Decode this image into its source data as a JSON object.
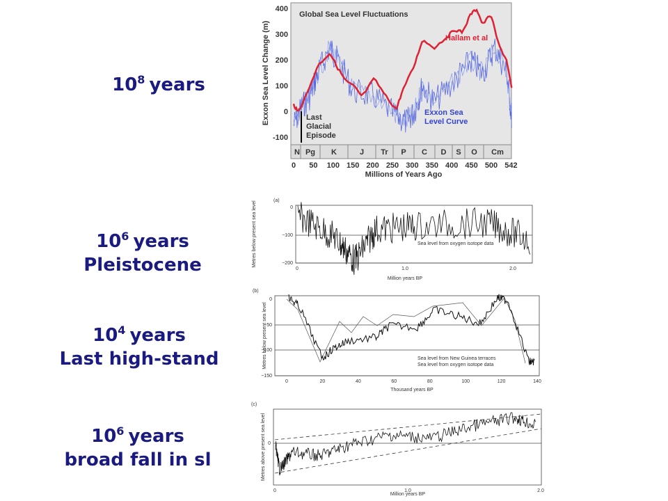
{
  "labels": [
    {
      "base": "10",
      "exponent": "8",
      "unit": "years"
    },
    {
      "base": "10",
      "exponent": "6",
      "unit": "years",
      "subtitle": "Pleistocene"
    },
    {
      "base": "10",
      "exponent": "4",
      "unit": "years",
      "subtitle": "Last high-stand"
    },
    {
      "base": "10",
      "exponent": "6",
      "unit": "years",
      "subtitle": "broad fall in sl"
    }
  ],
  "figures": [
    {
      "title": "Global Sea Level Fluctuations",
      "ylabel": "Exxon Sea Level Change (m)",
      "yticks": [
        "400",
        "300",
        "200",
        "100",
        "0",
        "-100"
      ],
      "periods": [
        "N",
        "Pg",
        "K",
        "J",
        "Tr",
        "P",
        "C",
        "D",
        "S",
        "O",
        "Cm"
      ],
      "xticks": [
        "0",
        "50",
        "100",
        "150",
        "200",
        "250",
        "300",
        "350",
        "400",
        "450",
        "500",
        "542"
      ],
      "xlabel": "Millions of Years Ago",
      "legend_red": "Hallam et al",
      "legend_blue": [
        "Exxon Sea",
        "Level Curve"
      ],
      "note": [
        "Last",
        "Glacial",
        "Episode"
      ]
    },
    {
      "panel": "(a)",
      "ylabel": "Metres below present sea level",
      "yticks": [
        "0",
        "−100",
        "−200"
      ],
      "xticks": [
        "0",
        "1.0",
        "2.0"
      ],
      "xlabel": "Million years BP",
      "note": "Sea level from oxygen isotope data"
    },
    {
      "panel": "(b)",
      "ylabel": "Metres below present sea level",
      "yticks": [
        "0",
        "−50",
        "−100",
        "−150"
      ],
      "xticks": [
        "0",
        "20",
        "40",
        "60",
        "80",
        "100",
        "120",
        "140"
      ],
      "xlabel": "Thousand years BP",
      "legend": [
        "Sea level from New Guinea terraces",
        "Sea level from oxygen isotope data"
      ]
    },
    {
      "panel": "(c)",
      "ylabel": "Metres above present sea level",
      "yticks": [
        "0"
      ],
      "xticks": [
        "0",
        "1.0",
        "2.0"
      ],
      "xlabel": "Million years BP"
    }
  ]
}
